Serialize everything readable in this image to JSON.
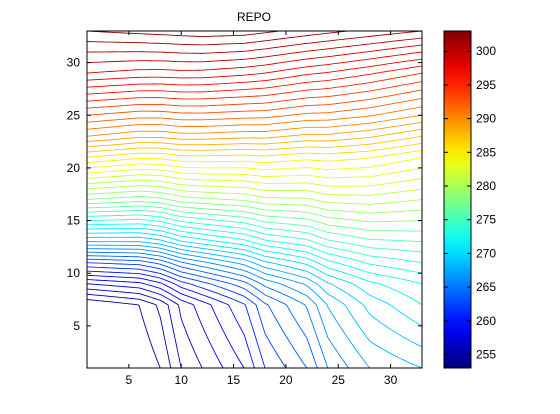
{
  "chart_data": [
    {
      "type": "contour",
      "title": "REPO",
      "xlabel": "",
      "ylabel": "",
      "xlim": [
        1,
        33
      ],
      "ylim": [
        1,
        33
      ],
      "x_ticks": [
        5,
        10,
        15,
        20,
        25,
        30
      ],
      "y_ticks": [
        5,
        10,
        15,
        20,
        25,
        30
      ],
      "colormap": "jet",
      "level_range": [
        253,
        303
      ],
      "level_step": 1,
      "boundary_values": {
        "left": [
          {
            "y": 1,
            "value": 253
          },
          {
            "y": 5,
            "value": 253
          },
          {
            "y": 7,
            "value": 253
          },
          {
            "y": 9,
            "value": 257
          },
          {
            "y": 11,
            "value": 262
          },
          {
            "y": 13,
            "value": 268
          },
          {
            "y": 15,
            "value": 273
          },
          {
            "y": 17,
            "value": 278
          },
          {
            "y": 19,
            "value": 282
          },
          {
            "y": 21,
            "value": 286
          },
          {
            "y": 23,
            "value": 290
          },
          {
            "y": 25,
            "value": 293
          },
          {
            "y": 27,
            "value": 296
          },
          {
            "y": 29,
            "value": 299
          },
          {
            "y": 31,
            "value": 301
          },
          {
            "y": 33,
            "value": 303
          }
        ],
        "bottom": [
          {
            "x": 1,
            "value": 253
          },
          {
            "x": 6,
            "value": 253
          },
          {
            "x": 8,
            "value": 254
          },
          {
            "x": 10,
            "value": 256
          },
          {
            "x": 12,
            "value": 257
          },
          {
            "x": 14,
            "value": 258
          },
          {
            "x": 16,
            "value": 259
          },
          {
            "x": 18,
            "value": 261
          },
          {
            "x": 20,
            "value": 262
          },
          {
            "x": 22,
            "value": 263
          },
          {
            "x": 24,
            "value": 265
          },
          {
            "x": 26,
            "value": 266
          },
          {
            "x": 28,
            "value": 267
          },
          {
            "x": 33,
            "value": 268
          }
        ],
        "right": [
          {
            "y": 1,
            "value": 268
          },
          {
            "y": 5,
            "value": 270
          },
          {
            "y": 9,
            "value": 272
          },
          {
            "y": 13,
            "value": 276
          },
          {
            "y": 17,
            "value": 280
          },
          {
            "y": 21,
            "value": 284
          },
          {
            "y": 25,
            "value": 290
          },
          {
            "y": 29,
            "value": 295
          },
          {
            "y": 31,
            "value": 298
          },
          {
            "y": 33,
            "value": 301
          }
        ],
        "top": [
          {
            "x": 1,
            "value": 302
          },
          {
            "x": 12,
            "value": 303
          },
          {
            "x": 16,
            "value": 303
          },
          {
            "x": 24,
            "value": 302
          },
          {
            "x": 33,
            "value": 301
          }
        ]
      }
    },
    {
      "type": "colorbar",
      "colormap": "jet",
      "range": [
        253,
        303
      ],
      "ticks": [
        255,
        260,
        265,
        270,
        275,
        280,
        285,
        290,
        295,
        300
      ]
    }
  ]
}
